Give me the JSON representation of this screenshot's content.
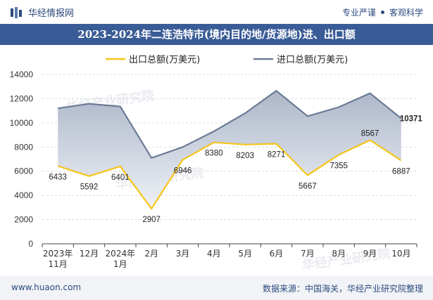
{
  "header": {
    "brand_name": "华经情报网",
    "slogan_left": "专业严谨",
    "slogan_right": "客观科学"
  },
  "footer": {
    "website": "www.huaon.com",
    "source": "数据来源：中国海关，华经产业研究院整理"
  },
  "watermark": "华经产业研究院",
  "colors": {
    "export_line": "#f5c518",
    "import_line": "#6b7a95",
    "fill_top": "#a9b3c6",
    "fill_bottom": "#eef1f6",
    "title_bg": "#3a5c96"
  },
  "chart_data": {
    "type": "line",
    "title": "2023-2024年二连浩特市(境内目的地/货源地)进、出口额",
    "categories": [
      "2023年\n11月",
      "12月",
      "2024年\n1月",
      "2月",
      "3月",
      "4月",
      "5月",
      "6月",
      "7月",
      "8月",
      "9月",
      "10月"
    ],
    "series": [
      {
        "name": "出口总额(万美元)",
        "values": [
          6433,
          5592,
          6401,
          2907,
          6946,
          8380,
          8203,
          8271,
          5667,
          7355,
          8567,
          6887
        ],
        "labels": [
          "6433",
          "5592",
          "6401",
          "2907",
          "6946",
          "8380",
          "8203",
          "8271",
          "5667",
          "7355",
          "8567",
          "6887"
        ]
      },
      {
        "name": "进口总额(万美元)",
        "values": [
          11200,
          11580,
          11350,
          7100,
          8000,
          9300,
          10800,
          12650,
          10550,
          11300,
          12450,
          10371
        ],
        "labels": [
          "",
          "",
          "",
          "",
          "",
          "",
          "",
          "",
          "",
          "",
          "",
          "10371"
        ]
      }
    ],
    "ylim": [
      0,
      14000
    ],
    "yticks": [
      "0",
      "2000",
      "4000",
      "6000",
      "8000",
      "10000",
      "12000",
      "14000"
    ],
    "xlabel": "",
    "ylabel": "",
    "legend": "top-center"
  }
}
